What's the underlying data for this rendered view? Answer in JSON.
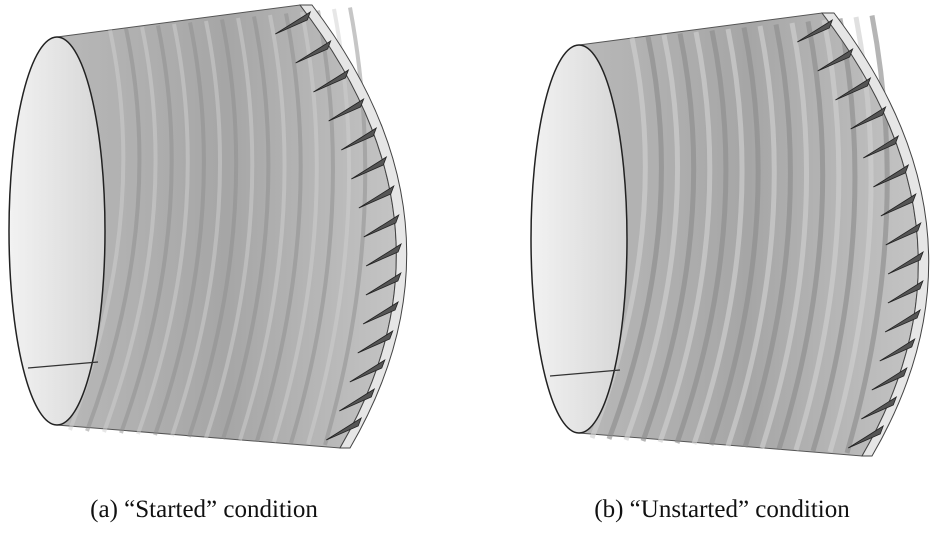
{
  "figures": [
    {
      "caption": "(a) “Started” condition"
    },
    {
      "caption": "(b) “Unstarted” condition"
    }
  ]
}
